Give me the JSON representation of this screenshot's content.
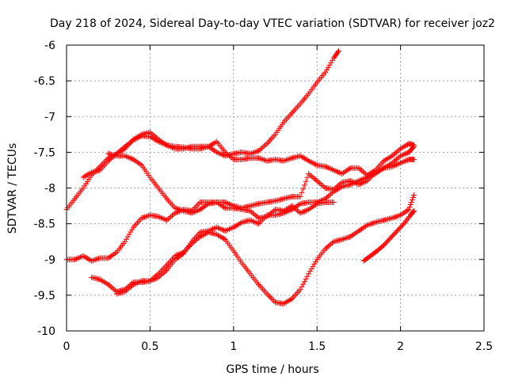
{
  "chart_data": {
    "type": "scatter",
    "title": "Day 218 of 2024, Sidereal Day-to-day VTEC variation (SDTVAR) for receiver joz2",
    "xlabel": "GPS time / hours",
    "ylabel": "SDTVAR / TECUs",
    "xlim": [
      0,
      2.5
    ],
    "ylim": [
      -10,
      -6
    ],
    "xticks": [
      0,
      0.5,
      1,
      1.5,
      2,
      2.5
    ],
    "xtick_labels": [
      "0",
      "0.5",
      "1",
      "1.5",
      "2",
      "2.5"
    ],
    "yticks": [
      -10,
      -9.5,
      -9,
      -8.5,
      -8,
      -7.5,
      -7,
      -6.5,
      -6
    ],
    "ytick_labels": [
      "-10",
      "-9.5",
      "-9",
      "-8.5",
      "-8",
      "-7.5",
      "-7",
      "-6.5",
      "-6"
    ],
    "grid": true,
    "marker": "plus",
    "color": "#ff0000",
    "series": [
      {
        "x": [
          0.0,
          0.05,
          0.1,
          0.15,
          0.2,
          0.25,
          0.3,
          0.35,
          0.4,
          0.45,
          0.5,
          0.55,
          0.6,
          0.65,
          0.7,
          0.75,
          0.8,
          0.85,
          0.9,
          0.95,
          1.0,
          1.05,
          1.1,
          1.15,
          1.2,
          1.25,
          1.3,
          1.35,
          1.4,
          1.45,
          1.5,
          1.55,
          1.6,
          1.63
        ],
        "y": [
          -8.3,
          -8.15,
          -8.0,
          -7.82,
          -7.7,
          -7.58,
          -7.52,
          -7.42,
          -7.33,
          -7.27,
          -7.28,
          -7.35,
          -7.4,
          -7.42,
          -7.43,
          -7.45,
          -7.45,
          -7.42,
          -7.5,
          -7.55,
          -7.52,
          -7.5,
          -7.52,
          -7.48,
          -7.38,
          -7.25,
          -7.08,
          -6.95,
          -6.82,
          -6.68,
          -6.52,
          -6.38,
          -6.18,
          -6.08
        ]
      },
      {
        "x": [
          0.1,
          0.15,
          0.2,
          0.25,
          0.3,
          0.35,
          0.4,
          0.45,
          0.5,
          0.55,
          0.6,
          0.65,
          0.7,
          0.75,
          0.8,
          0.85,
          0.9,
          0.95,
          1.0,
          1.05,
          1.1,
          1.15,
          1.2,
          1.25,
          1.3,
          1.35,
          1.4,
          1.45,
          1.5,
          1.55,
          1.6,
          1.65,
          1.7,
          1.75,
          1.8,
          1.85,
          1.9,
          1.95,
          2.0,
          2.05,
          2.08
        ],
        "y": [
          -7.85,
          -7.78,
          -7.75,
          -7.62,
          -7.52,
          -7.45,
          -7.32,
          -7.25,
          -7.22,
          -7.32,
          -7.4,
          -7.45,
          -7.45,
          -7.42,
          -7.42,
          -7.42,
          -7.35,
          -7.5,
          -7.6,
          -7.6,
          -7.58,
          -7.58,
          -7.62,
          -7.6,
          -7.62,
          -7.58,
          -7.55,
          -7.62,
          -7.68,
          -7.7,
          -7.75,
          -7.8,
          -7.72,
          -7.72,
          -7.82,
          -7.75,
          -7.62,
          -7.55,
          -7.45,
          -7.38,
          -7.4
        ]
      },
      {
        "x": [
          0.25,
          0.3,
          0.35,
          0.4,
          0.45,
          0.5,
          0.55,
          0.6,
          0.65,
          0.7,
          0.75,
          0.8,
          0.85,
          0.9,
          0.95,
          1.0,
          1.05,
          1.1,
          1.15,
          1.2,
          1.25,
          1.3,
          1.35,
          1.4,
          1.45,
          1.5,
          1.55,
          1.6,
          1.65,
          1.7,
          1.75,
          1.8,
          1.85,
          1.9,
          1.95,
          2.0,
          2.05,
          2.08
        ],
        "y": [
          -7.52,
          -7.55,
          -7.55,
          -7.6,
          -7.68,
          -7.85,
          -8.0,
          -8.15,
          -8.28,
          -8.32,
          -8.35,
          -8.3,
          -8.22,
          -8.2,
          -8.2,
          -8.25,
          -8.28,
          -8.25,
          -8.22,
          -8.2,
          -8.18,
          -8.15,
          -8.12,
          -8.12,
          -7.8,
          -7.9,
          -8.0,
          -8.02,
          -7.92,
          -7.9,
          -7.95,
          -7.9,
          -7.78,
          -7.72,
          -7.7,
          -7.65,
          -7.6,
          -7.6
        ]
      },
      {
        "x": [
          0.0,
          0.05,
          0.1,
          0.15,
          0.2,
          0.25,
          0.3,
          0.35,
          0.4,
          0.45,
          0.5,
          0.55,
          0.6,
          0.65,
          0.7,
          0.75,
          0.8,
          0.85,
          0.9,
          0.95,
          1.0,
          1.05,
          1.1,
          1.15,
          1.2,
          1.25,
          1.3,
          1.35,
          1.4,
          1.45,
          1.5,
          1.55,
          1.6
        ],
        "y": [
          -9.0,
          -9.0,
          -8.95,
          -9.02,
          -8.98,
          -8.98,
          -8.9,
          -8.75,
          -8.55,
          -8.42,
          -8.38,
          -8.4,
          -8.45,
          -8.35,
          -8.3,
          -8.32,
          -8.2,
          -8.2,
          -8.2,
          -8.28,
          -8.28,
          -8.3,
          -8.32,
          -8.42,
          -8.4,
          -8.3,
          -8.32,
          -8.25,
          -8.35,
          -8.3,
          -8.22,
          -8.2,
          -8.2
        ]
      },
      {
        "x": [
          0.15,
          0.2,
          0.25,
          0.3,
          0.35,
          0.4,
          0.45,
          0.5,
          0.55,
          0.6,
          0.65,
          0.7,
          0.75,
          0.8,
          0.85,
          0.9,
          0.95,
          1.0,
          1.05,
          1.1,
          1.15,
          1.2,
          1.25,
          1.3,
          1.35,
          1.4,
          1.45,
          1.5,
          1.55,
          1.6,
          1.65,
          1.7,
          1.75,
          1.8,
          1.85,
          1.9,
          1.95,
          2.0,
          2.05,
          2.08
        ],
        "y": [
          -9.25,
          -9.28,
          -9.35,
          -9.45,
          -9.42,
          -9.32,
          -9.32,
          -9.3,
          -9.25,
          -9.15,
          -9.0,
          -8.92,
          -8.75,
          -8.62,
          -8.6,
          -8.55,
          -8.6,
          -8.55,
          -8.48,
          -8.45,
          -8.5,
          -8.38,
          -8.38,
          -8.35,
          -8.3,
          -8.22,
          -8.2,
          -8.2,
          -8.15,
          -8.05,
          -7.98,
          -7.95,
          -7.9,
          -7.85,
          -7.8,
          -7.72,
          -7.65,
          -7.55,
          -7.5,
          -7.42
        ]
      },
      {
        "x": [
          0.3,
          0.35,
          0.4,
          0.45,
          0.5,
          0.55,
          0.6,
          0.65,
          0.7,
          0.75,
          0.8,
          0.85,
          0.9,
          0.95,
          1.0,
          1.05,
          1.1,
          1.15,
          1.2,
          1.25,
          1.3,
          1.35,
          1.4,
          1.45,
          1.5,
          1.55,
          1.6,
          1.65,
          1.7,
          1.75,
          1.8,
          1.85,
          1.9,
          1.95,
          2.0,
          2.05,
          2.08
        ],
        "y": [
          -9.48,
          -9.45,
          -9.35,
          -9.3,
          -9.3,
          -9.2,
          -9.08,
          -8.95,
          -8.9,
          -8.78,
          -8.68,
          -8.62,
          -8.65,
          -8.72,
          -8.88,
          -9.05,
          -9.2,
          -9.35,
          -9.48,
          -9.6,
          -9.62,
          -9.55,
          -9.42,
          -9.2,
          -9.0,
          -8.85,
          -8.75,
          -8.72,
          -8.68,
          -8.6,
          -8.52,
          -8.48,
          -8.45,
          -8.42,
          -8.38,
          -8.3,
          -8.1
        ]
      },
      {
        "x": [
          1.78,
          1.82,
          1.86,
          1.9,
          1.94,
          1.98,
          2.02,
          2.06,
          2.08
        ],
        "y": [
          -9.02,
          -8.95,
          -8.88,
          -8.8,
          -8.7,
          -8.6,
          -8.5,
          -8.38,
          -8.32
        ]
      }
    ]
  }
}
